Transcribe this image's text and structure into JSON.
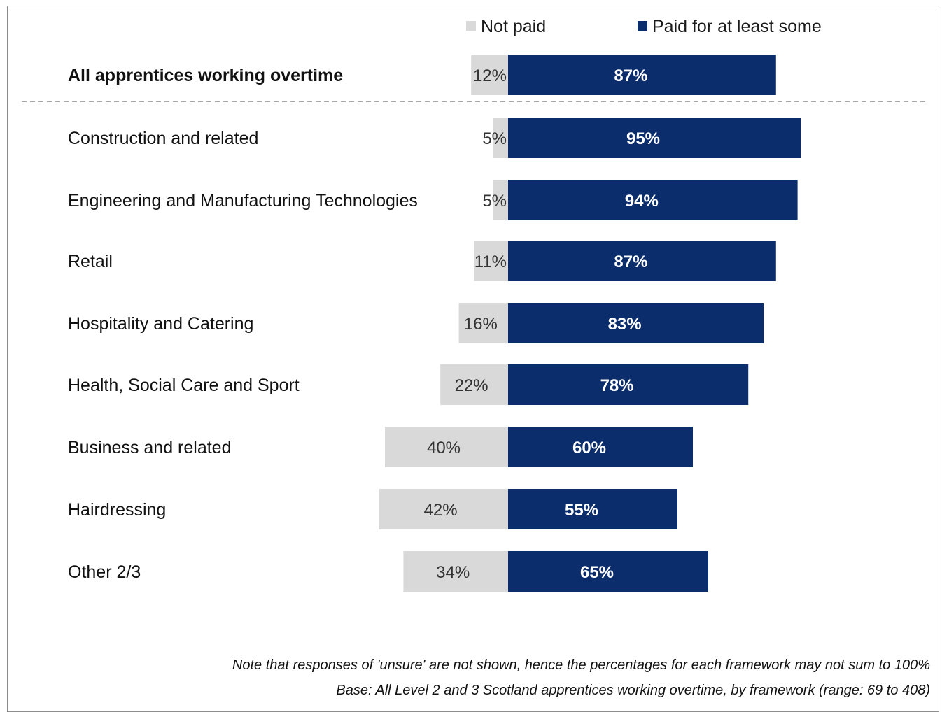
{
  "colors": {
    "not_paid": "#d9d9d9",
    "paid": "#0b2d6b",
    "divider": "#8c8c8c"
  },
  "chart_data": {
    "type": "bar",
    "orientation": "horizontal-diverging",
    "categories": [
      "All apprentices working overtime",
      "Construction and related",
      "Engineering and Manufacturing Technologies",
      "Retail",
      "Hospitality and Catering",
      "Health, Social Care and Sport",
      "Business and related",
      "Hairdressing",
      "Other 2/3"
    ],
    "value_labels": {
      "not_paid": [
        "12%",
        "5%",
        "5%",
        "11%",
        "16%",
        "22%",
        "40%",
        "42%",
        "34%"
      ],
      "paid": [
        "87%",
        "95%",
        "94%",
        "87%",
        "83%",
        "78%",
        "60%",
        "55%",
        "65%"
      ]
    },
    "series": [
      {
        "name": "Not paid",
        "values": [
          12,
          5,
          5,
          11,
          16,
          22,
          40,
          42,
          34
        ]
      },
      {
        "name": "Paid for at least some",
        "values": [
          87,
          95,
          94,
          87,
          83,
          78,
          60,
          55,
          65
        ]
      }
    ],
    "unit": "%",
    "legend_position": "top",
    "highlighted_category": "All apprentices working overtime",
    "notes": [
      "Note that responses of 'unsure' are not shown, hence the percentages for each framework may not sum to 100%",
      "Base: All Level 2 and 3 Scotland apprentices working overtime, by framework (range: 69 to 408)"
    ]
  }
}
